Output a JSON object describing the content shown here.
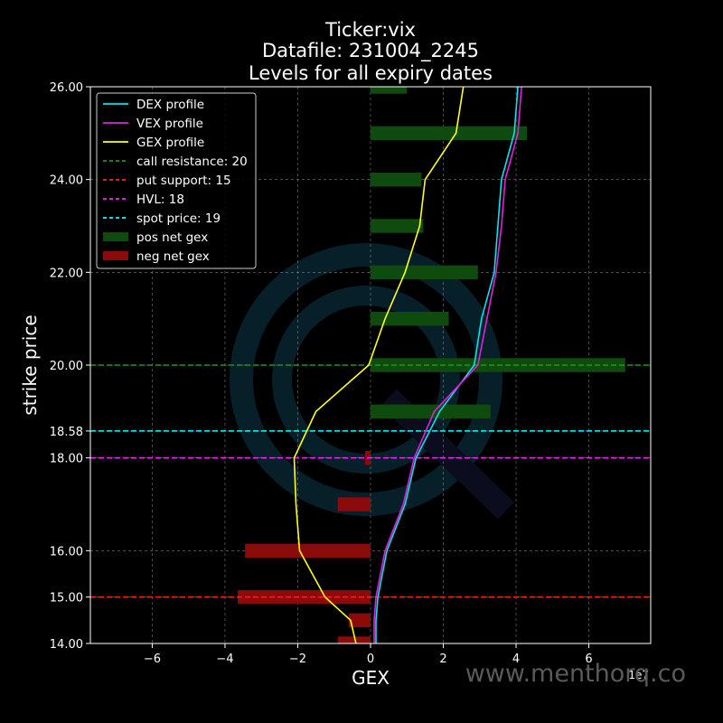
{
  "chart_data": {
    "type": "bar",
    "title_lines": [
      "Ticker:vix",
      "Datafile: 231004_2245",
      "Levels for all expiry dates"
    ],
    "xlabel": "GEX",
    "ylabel": "strike price",
    "x_exponent_label": "1e7",
    "xlim": [
      -7.7,
      7.7
    ],
    "ylim": [
      14.0,
      26.0
    ],
    "x_ticks": [
      -6,
      -4,
      -2,
      0,
      2,
      4,
      6
    ],
    "x_tick_labels": [
      "−6",
      "−4",
      "−2",
      "0",
      "2",
      "4",
      "6"
    ],
    "y_ticks": [
      14,
      15,
      16,
      18,
      18.58,
      20,
      22,
      24,
      26
    ],
    "y_tick_labels": [
      "14.00",
      "15.00",
      "16.00",
      "18.00",
      "18.58",
      "20.00",
      "22.00",
      "24.00",
      "26.00"
    ],
    "grid": true,
    "legend_position": "upper-left",
    "bar_height": 0.3,
    "pos_net_gex": {
      "name": "pos net gex",
      "color": "#0f4a0f",
      "bars": [
        {
          "strike": 26,
          "value": 1.0
        },
        {
          "strike": 25,
          "value": 4.3
        },
        {
          "strike": 24,
          "value": 1.4
        },
        {
          "strike": 23,
          "value": 1.45
        },
        {
          "strike": 22,
          "value": 2.95
        },
        {
          "strike": 21,
          "value": 2.15
        },
        {
          "strike": 20,
          "value": 7.0
        },
        {
          "strike": 19,
          "value": 3.3
        }
      ]
    },
    "neg_net_gex": {
      "name": "neg net gex",
      "color": "#8b0a0a",
      "bars": [
        {
          "strike": 18,
          "value": -0.15
        },
        {
          "strike": 17,
          "value": -0.9
        },
        {
          "strike": 16,
          "value": -3.45
        },
        {
          "strike": 15,
          "value": -3.65
        },
        {
          "strike": 14.5,
          "value": -0.6
        },
        {
          "strike": 14,
          "value": -0.9
        }
      ]
    },
    "series": [
      {
        "name": "DEX profile",
        "color": "#00e5ee",
        "points": [
          [
            0.15,
            14
          ],
          [
            0.15,
            14.5
          ],
          [
            0.2,
            15
          ],
          [
            0.45,
            16
          ],
          [
            0.95,
            17
          ],
          [
            1.25,
            18
          ],
          [
            1.9,
            19
          ],
          [
            2.85,
            20
          ],
          [
            3.05,
            21
          ],
          [
            3.4,
            22
          ],
          [
            3.5,
            23
          ],
          [
            3.6,
            24
          ],
          [
            3.95,
            25
          ],
          [
            4.05,
            26
          ]
        ]
      },
      {
        "name": "VEX profile",
        "color": "#e020e0",
        "points": [
          [
            0.1,
            14
          ],
          [
            0.1,
            14.5
          ],
          [
            0.15,
            15
          ],
          [
            0.4,
            16
          ],
          [
            0.9,
            17
          ],
          [
            1.2,
            18
          ],
          [
            1.75,
            19
          ],
          [
            2.95,
            20
          ],
          [
            3.2,
            21
          ],
          [
            3.45,
            22
          ],
          [
            3.6,
            23
          ],
          [
            3.7,
            24
          ],
          [
            4.05,
            25
          ],
          [
            4.15,
            26
          ]
        ]
      },
      {
        "name": "GEX profile",
        "color": "#ffff20",
        "points": [
          [
            -0.4,
            14
          ],
          [
            -0.55,
            14.5
          ],
          [
            -1.25,
            15
          ],
          [
            -1.95,
            16
          ],
          [
            -2.05,
            17
          ],
          [
            -2.1,
            18
          ],
          [
            -1.5,
            19
          ],
          [
            -0.05,
            20
          ],
          [
            0.4,
            21
          ],
          [
            0.95,
            22
          ],
          [
            1.35,
            23
          ],
          [
            1.5,
            24
          ],
          [
            2.35,
            25
          ],
          [
            2.55,
            26
          ]
        ]
      }
    ],
    "levels": [
      {
        "name": "call resistance: 20",
        "y": 20,
        "color": "#1a9a1a"
      },
      {
        "name": "put support: 15",
        "y": 15,
        "color": "#ff2020"
      },
      {
        "name": "HVL: 18",
        "y": 18,
        "color": "#ff20ff"
      },
      {
        "name": "spot price: 19",
        "y": 18.58,
        "color": "#00ffff"
      }
    ],
    "legend": [
      {
        "label": "DEX profile",
        "kind": "line",
        "color": "#00e5ee"
      },
      {
        "label": "VEX profile",
        "kind": "line",
        "color": "#e020e0"
      },
      {
        "label": "GEX profile",
        "kind": "line",
        "color": "#ffff20"
      },
      {
        "label": "call resistance: 20",
        "kind": "dashed",
        "color": "#1a9a1a"
      },
      {
        "label": "put support: 15",
        "kind": "dashed",
        "color": "#ff2020"
      },
      {
        "label": "HVL: 18",
        "kind": "dashed",
        "color": "#ff20ff"
      },
      {
        "label": "spot price: 19",
        "kind": "dashed",
        "color": "#00ffff"
      },
      {
        "label": "pos net gex",
        "kind": "patch",
        "color": "#0f4a0f"
      },
      {
        "label": "neg net gex",
        "kind": "patch",
        "color": "#8b0a0a"
      }
    ]
  },
  "watermark": {
    "text": "www.menthorq.co",
    "color": "#5a5a5a",
    "logo_color": "#0d3a4a"
  }
}
